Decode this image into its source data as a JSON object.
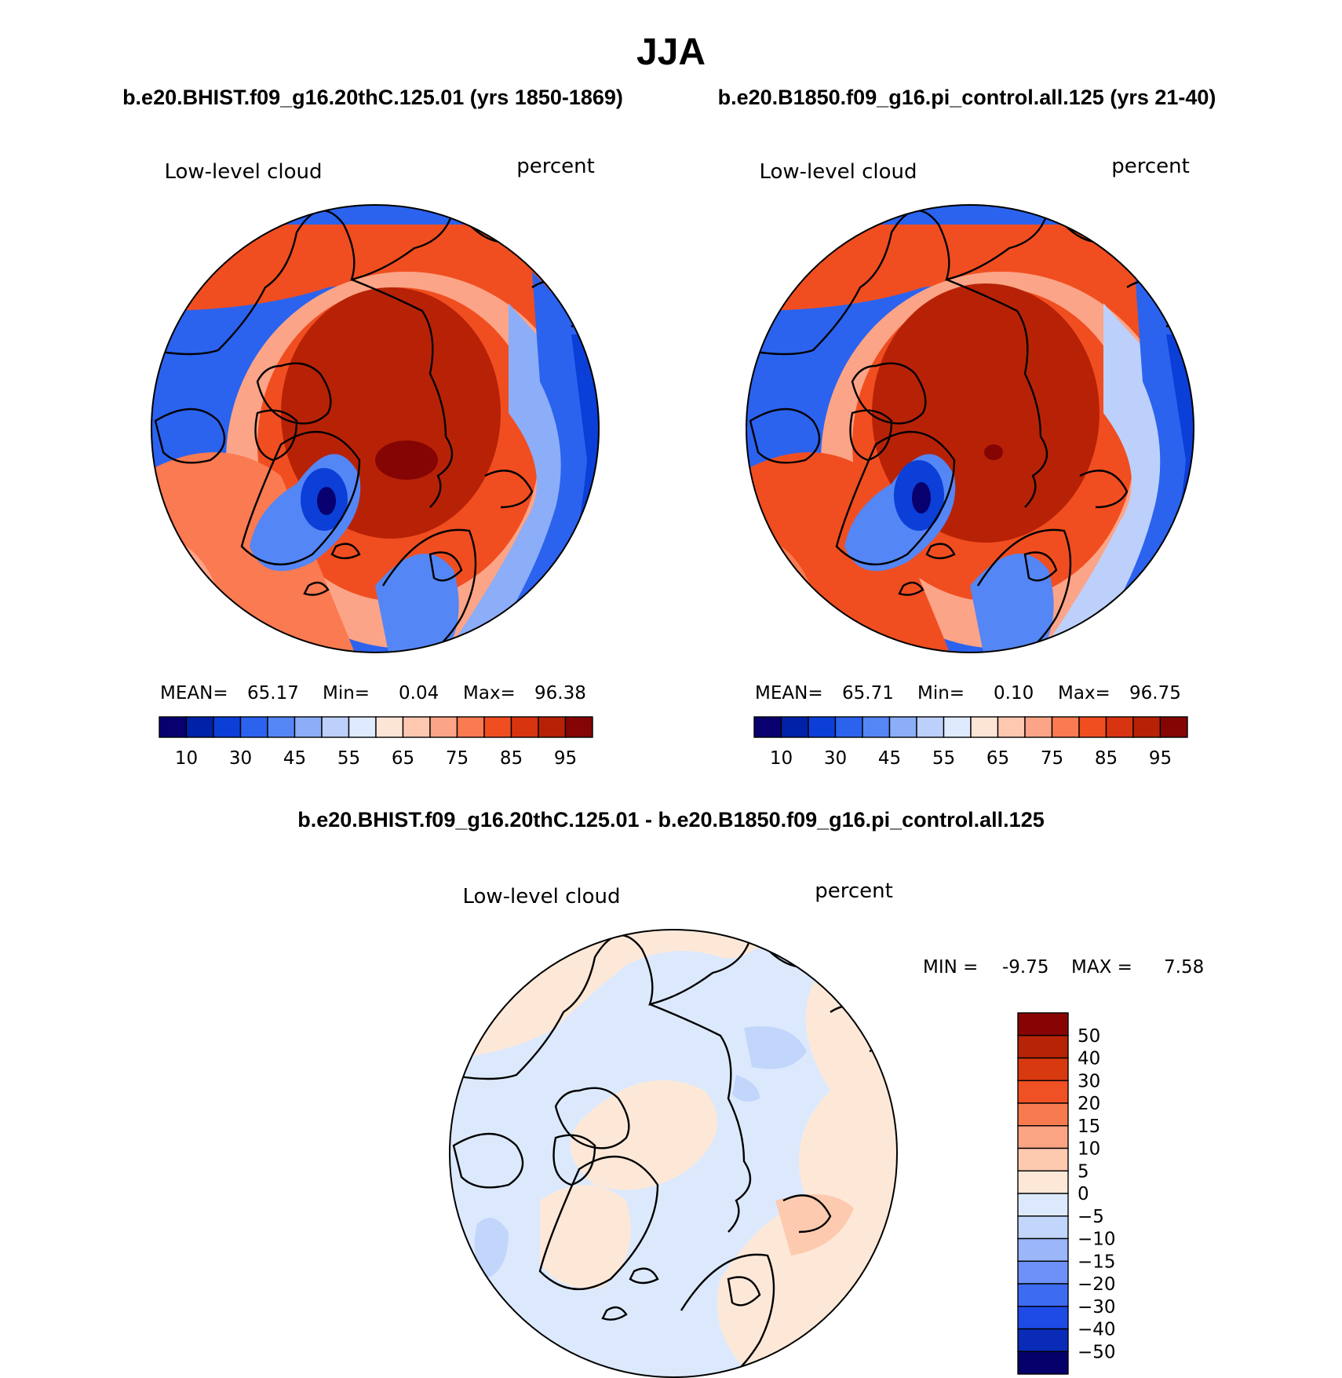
{
  "title": "JJA",
  "subtitle_left": "b.e20.BHIST.f09_g16.20thC.125.01 (yrs 1850-1869)",
  "subtitle_right": "b.e20.B1850.f09_g16.pi_control.all.125 (yrs 21-40)",
  "diff_title": "b.e20.BHIST.f09_g16.20thC.125.01 - b.e20.B1850.f09_g16.pi_control.all.125",
  "colors": {
    "abs_scale": [
      "#08006e",
      "#0022a8",
      "#0b3fd8",
      "#2b63ef",
      "#5486f5",
      "#8cadf8",
      "#bcd0fb",
      "#deeafd",
      "#fde5d6",
      "#fdc7b0",
      "#fca487",
      "#fa7a51",
      "#f04e20",
      "#d83410",
      "#b72206",
      "#850505"
    ],
    "diff_scale": [
      "#06006b",
      "#0a2bb7",
      "#1e4ae6",
      "#3d6cf2",
      "#6d91f6",
      "#9bb6f9",
      "#c2d5fb",
      "#dce9fd",
      "#fde8d8",
      "#fdcab0",
      "#fba484",
      "#f77b4e",
      "#ef5024",
      "#d9390f",
      "#b72306",
      "#880404"
    ],
    "land_outline": "#000000"
  },
  "chart_data": [
    {
      "type": "heatmap",
      "panel": "top-left",
      "variable": "Low-level cloud",
      "units": "percent",
      "projection": "north polar stereographic",
      "stats": {
        "mean_label": "MEAN=",
        "mean": "65.17",
        "min_label": "Min=",
        "min": "0.04",
        "max_label": "Max=",
        "max": "96.38"
      },
      "colorbar_ticks": [
        "10",
        "30",
        "45",
        "55",
        "65",
        "75",
        "85",
        "95"
      ],
      "colorbar_levels": [
        5,
        10,
        20,
        30,
        40,
        45,
        50,
        55,
        60,
        65,
        70,
        75,
        80,
        85,
        90,
        95
      ],
      "colorbar_orientation": "horizontal"
    },
    {
      "type": "heatmap",
      "panel": "top-right",
      "variable": "Low-level cloud",
      "units": "percent",
      "projection": "north polar stereographic",
      "stats": {
        "mean_label": "MEAN=",
        "mean": "65.71",
        "min_label": "Min=",
        "min": "0.10",
        "max_label": "Max=",
        "max": "96.75"
      },
      "colorbar_ticks": [
        "10",
        "30",
        "45",
        "55",
        "65",
        "75",
        "85",
        "95"
      ],
      "colorbar_levels": [
        5,
        10,
        20,
        30,
        40,
        45,
        50,
        55,
        60,
        65,
        70,
        75,
        80,
        85,
        90,
        95
      ],
      "colorbar_orientation": "horizontal"
    },
    {
      "type": "heatmap",
      "panel": "bottom-center",
      "variable": "Low-level cloud",
      "units": "percent",
      "projection": "north polar stereographic",
      "stats": {
        "min_label": "MIN =",
        "min": "-9.75",
        "max_label": "MAX =",
        "max": "7.58"
      },
      "colorbar_ticks": [
        "50",
        "40",
        "30",
        "20",
        "15",
        "10",
        "5",
        "0",
        "−5",
        "−10",
        "−15",
        "−20",
        "−30",
        "−40",
        "−50"
      ],
      "colorbar_levels": [
        -50,
        -40,
        -30,
        -20,
        -15,
        -10,
        -5,
        0,
        5,
        10,
        15,
        20,
        30,
        40,
        50
      ],
      "colorbar_orientation": "vertical"
    }
  ]
}
